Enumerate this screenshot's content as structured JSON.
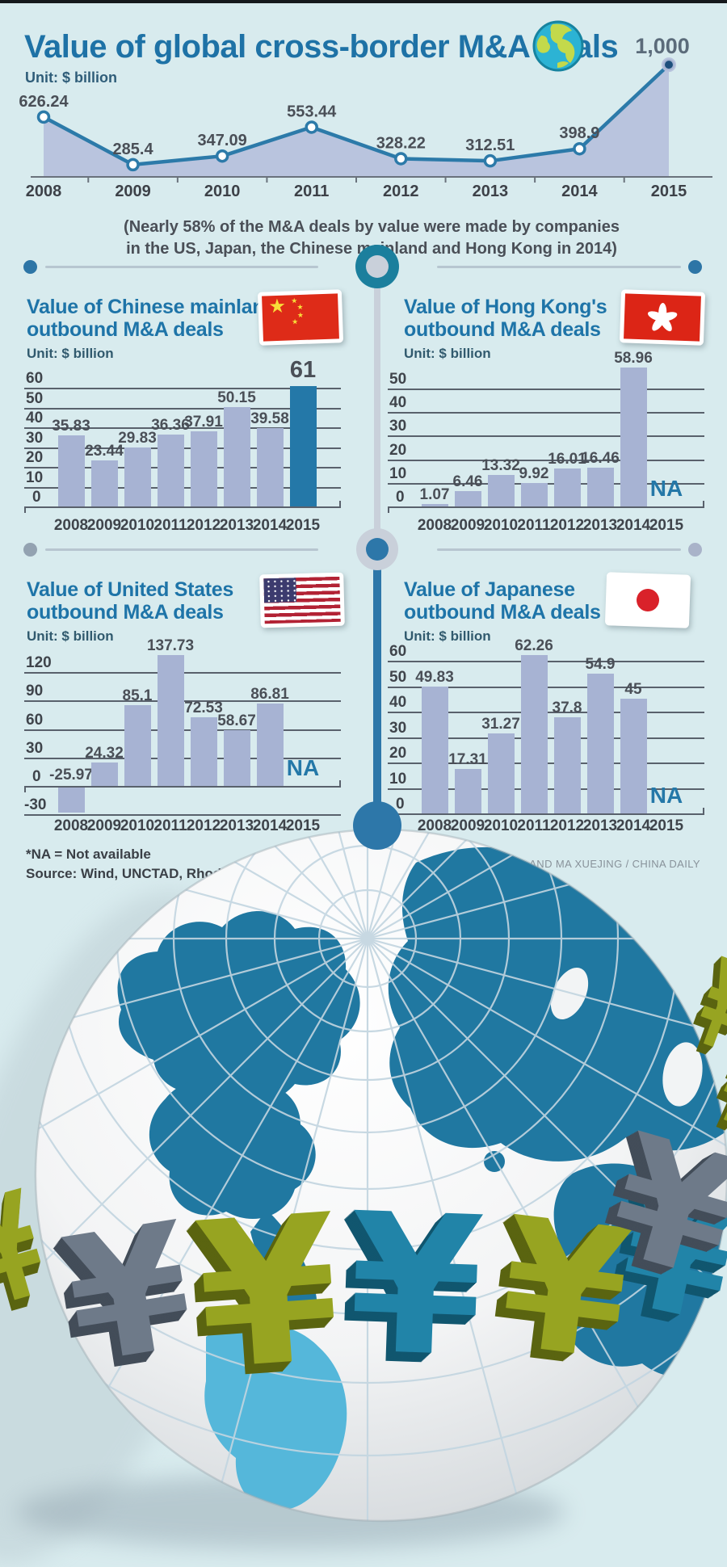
{
  "header": {
    "title": "Value of global cross-border M&A deals",
    "unit": "Unit: $ billion"
  },
  "note": {
    "line1": "(Nearly 58% of the M&A deals by value were made by companies",
    "line2": "in the US, Japan, the Chinese mainland and Hong Kong in 2014)"
  },
  "sections": {
    "china": {
      "title1": "Value of Chinese mainland's",
      "title2": "outbound M&A deals",
      "unit": "Unit: $ billion",
      "flag": "china-flag"
    },
    "hongkong": {
      "title1": "Value of Hong Kong's",
      "title2": "outbound M&A deals",
      "unit": "Unit: $ billion",
      "flag": "hong-kong-flag"
    },
    "us": {
      "title1": "Value of United States",
      "title2": "outbound M&A deals",
      "unit": "Unit: $ billion",
      "flag": "united-states-flag"
    },
    "japan": {
      "title1": "Value of Japanese",
      "title2": "outbound M&A deals",
      "unit": "Unit: $ billion",
      "flag": "japan-flag"
    }
  },
  "footer": {
    "na_note": "*NA = Not available",
    "source": "Source: Wind, UNCTAD, Rhodium Group",
    "credit": "SU JINGBO AND MA XUEJING / CHINA DAILY"
  },
  "colors": {
    "background": "#d8ebee",
    "title_blue": "#1e72a6",
    "line_stroke": "#2c7aa9",
    "area_fill": "#b6c0dc",
    "bar_fill": "#a7b3d3",
    "bar_highlight": "#2478a8",
    "na_text": "#2478a8",
    "grid": "#59616c",
    "label_gray": "#4a4f57",
    "yen_olive": "#97a421",
    "yen_gray": "#6e7a89",
    "yen_teal": "#2184a8",
    "globe_land": "#2078a1",
    "globe_land_light": "#55b7da"
  },
  "decor": {
    "yen_symbol": "¥"
  },
  "chart_data": [
    {
      "id": "global",
      "type": "area",
      "title": "Value of global cross-border M&A deals",
      "ylabel": "$ billion",
      "categories": [
        "2008",
        "2009",
        "2010",
        "2011",
        "2012",
        "2013",
        "2014",
        "2015"
      ],
      "values": [
        626.24,
        285.4,
        347.09,
        553.44,
        328.22,
        312.51,
        398.9,
        1000
      ],
      "value_labels": [
        "626.24",
        "285.4",
        "347.09",
        "553.44",
        "328.22",
        "312.51",
        "398.9",
        "1,000"
      ],
      "ylim": [
        0,
        1050
      ],
      "grid": false,
      "legend": "none"
    },
    {
      "id": "china",
      "type": "bar",
      "title": "Value of Chinese mainland's outbound M&A deals",
      "ylabel": "$ billion",
      "categories": [
        "2008",
        "2009",
        "2010",
        "2011",
        "2012",
        "2013",
        "2014",
        "2015"
      ],
      "values": [
        35.83,
        23.44,
        29.83,
        36.36,
        37.91,
        50.15,
        39.58,
        61
      ],
      "value_labels": [
        "35.83",
        "23.44",
        "29.83",
        "36.36",
        "37.91",
        "50.15",
        "39.58",
        "61"
      ],
      "yticks": [
        0,
        10,
        20,
        30,
        40,
        50,
        60
      ],
      "ylim": [
        0,
        66
      ],
      "highlight_index": 7
    },
    {
      "id": "hongkong",
      "type": "bar",
      "title": "Value of Hong Kong's outbound M&A deals",
      "ylabel": "$ billion",
      "categories": [
        "2008",
        "2009",
        "2010",
        "2011",
        "2012",
        "2013",
        "2014",
        "2015"
      ],
      "values": [
        1.07,
        6.46,
        13.32,
        9.92,
        16.01,
        16.46,
        58.96,
        null
      ],
      "value_labels": [
        "1.07",
        "6.46",
        "13.32",
        "9.92",
        "16.01",
        "16.46",
        "58.96",
        "NA"
      ],
      "yticks": [
        0,
        10,
        20,
        30,
        40,
        50
      ],
      "ylim": [
        0,
        62
      ]
    },
    {
      "id": "us",
      "type": "bar",
      "title": "Value of United States outbound M&A deals",
      "ylabel": "$ billion",
      "categories": [
        "2008",
        "2009",
        "2010",
        "2011",
        "2012",
        "2013",
        "2014",
        "2015"
      ],
      "values": [
        -25.97,
        24.32,
        85.1,
        137.73,
        72.53,
        58.67,
        86.81,
        null
      ],
      "value_labels": [
        "-25.97",
        "24.32",
        "85.1",
        "137.73",
        "72.53",
        "58.67",
        "86.81",
        "NA"
      ],
      "yticks": [
        -30,
        0,
        30,
        60,
        90,
        120
      ],
      "ylim": [
        -34,
        147
      ]
    },
    {
      "id": "japan",
      "type": "bar",
      "title": "Value of Japanese outbound M&A deals",
      "ylabel": "$ billion",
      "categories": [
        "2008",
        "2009",
        "2010",
        "2011",
        "2012",
        "2013",
        "2014",
        "2015"
      ],
      "values": [
        49.83,
        17.31,
        31.27,
        62.26,
        37.8,
        54.9,
        45,
        null
      ],
      "value_labels": [
        "49.83",
        "17.31",
        "31.27",
        "62.26",
        "37.8",
        "54.9",
        "45",
        "NA"
      ],
      "yticks": [
        0,
        10,
        20,
        30,
        40,
        50,
        60
      ],
      "ylim": [
        0,
        65
      ]
    }
  ]
}
